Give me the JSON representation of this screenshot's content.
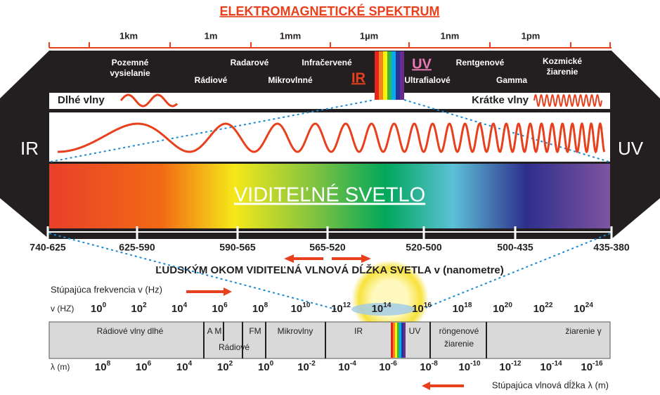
{
  "title": "ELEKTROMAGNETICKÉ SPEKTRUM",
  "top_scale": [
    "1km",
    "1m",
    "1mm",
    "1µm",
    "1nm",
    "1pm"
  ],
  "bands": [
    [
      "Pozemné",
      "vysielanie"
    ],
    [
      "Radarové"
    ],
    [
      "Rádiové"
    ],
    [
      "Infračervené"
    ],
    [
      "Mikrovlnné"
    ],
    [
      "IR"
    ],
    [
      "UV"
    ],
    [
      "Ultrafialové"
    ],
    [
      "Rentgenové"
    ],
    [
      "Gamma"
    ],
    [
      "Kozmické",
      "žiarenie"
    ]
  ],
  "long_waves": "Dlhé vlny",
  "short_waves": "Krátke vlny",
  "side_left": "IR",
  "side_right": "UV",
  "visible": "VIDITEĽNÉ SVETLO",
  "nm_ranges": [
    "740-625",
    "625-590",
    "590-565",
    "565-520",
    "520-500",
    "500-435",
    "435-380"
  ],
  "nm_caption": "ĽUDSKÝM OKOM VIDITEĽNÁ VLNOVÁ DĹŽKA SVETLA v (nanometre)",
  "freq_caption": "Stúpajúca frekvencia v (Hz)",
  "freq_unit": "v (HZ)",
  "power_base": "10",
  "freq_exponents": [
    "0",
    "2",
    "4",
    "6",
    "8",
    "10",
    "12",
    "14",
    "16",
    "18",
    "20",
    "22",
    "24"
  ],
  "regions": [
    [
      "Rádiové  vlny dlhé"
    ],
    [
      "A M"
    ],
    [
      "FM"
    ],
    [
      "Rádiové"
    ],
    [
      "Mikrovlny"
    ],
    [
      "IR"
    ],
    [
      "UV"
    ],
    [
      "röngenové",
      "žiarenie"
    ],
    [
      "žiarenie γ"
    ]
  ],
  "wl_unit": "λ (m)",
  "wl_exponents": [
    "8",
    "6",
    "4",
    "2",
    "0",
    "-2",
    "-4",
    "-6",
    "-8",
    "-10",
    "-12",
    "-14",
    "-16"
  ],
  "wl_caption": "Stúpajúca vlnová dĺžka λ (m)"
}
